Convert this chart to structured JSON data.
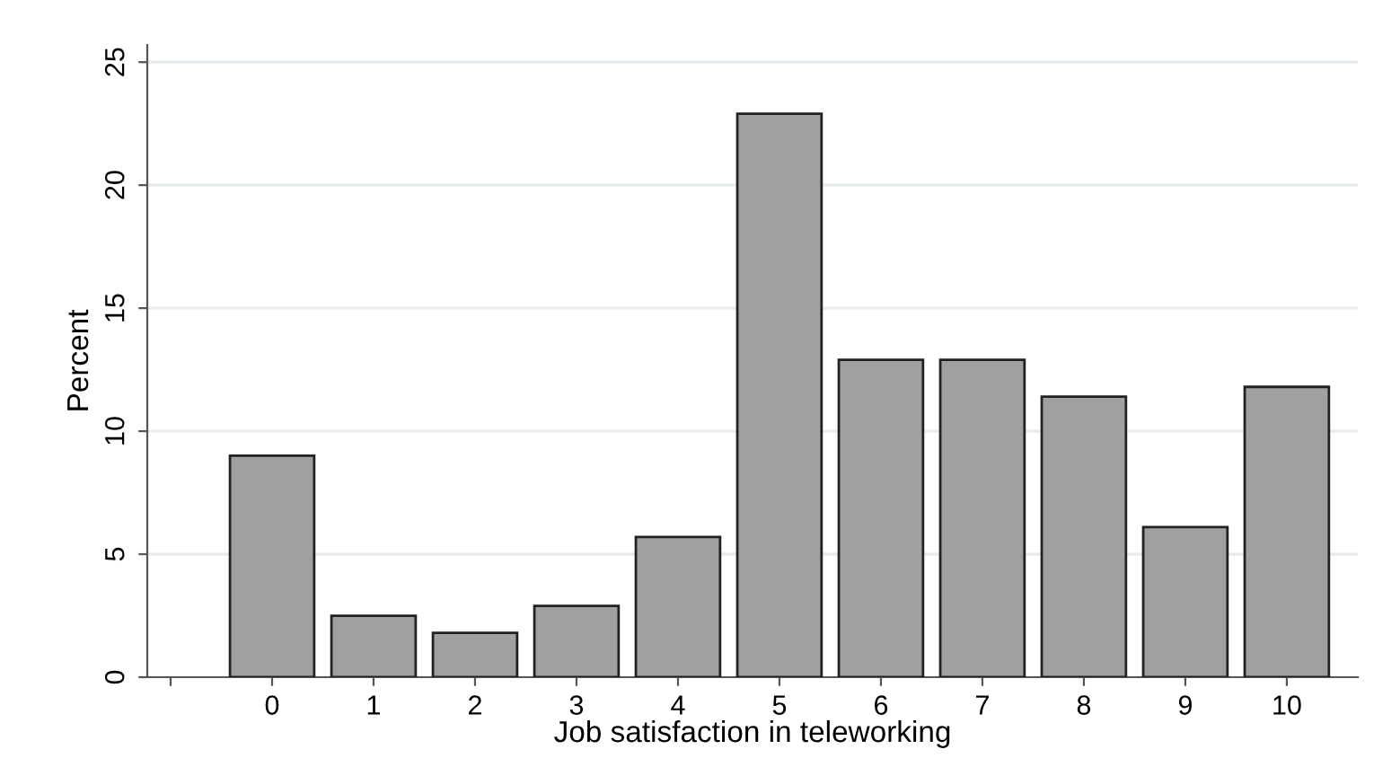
{
  "chart_data": {
    "type": "bar",
    "xlabel": "Job satisfaction in teleworking",
    "ylabel": "Percent",
    "x": [
      0,
      1,
      2,
      3,
      4,
      5,
      6,
      7,
      8,
      9,
      10
    ],
    "values": [
      9.0,
      2.5,
      1.8,
      2.9,
      5.7,
      22.9,
      12.9,
      12.9,
      11.4,
      6.1,
      11.8
    ],
    "color": "#a0a0a0",
    "xlim": [
      -1.23,
      10.7
    ],
    "xticks": [
      {
        "value": -1,
        "label": null
      },
      0,
      1,
      2,
      3,
      4,
      5,
      6,
      7,
      8,
      9,
      10
    ],
    "ylim": [
      0,
      25.7
    ],
    "yticks": [
      0,
      5,
      10,
      15,
      20,
      25
    ],
    "grid": "y"
  }
}
